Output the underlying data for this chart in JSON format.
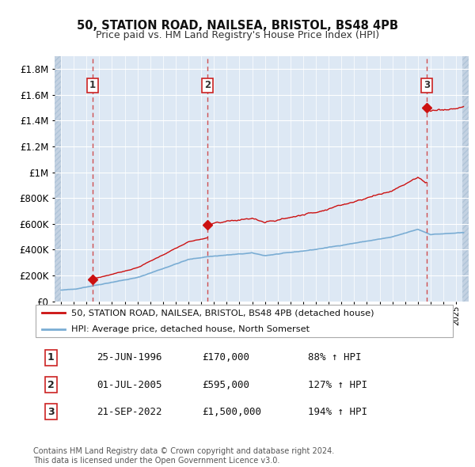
{
  "title_line1": "50, STATION ROAD, NAILSEA, BRISTOL, BS48 4PB",
  "title_line2": "Price paid vs. HM Land Registry's House Price Index (HPI)",
  "hpi_color": "#7aadd4",
  "price_color": "#cc1111",
  "dashed_color": "#cc3333",
  "background_plot": "#dde8f4",
  "hatch_color": "#c4d2e2",
  "legend_label_price": "50, STATION ROAD, NAILSEA, BRISTOL, BS48 4PB (detached house)",
  "legend_label_hpi": "HPI: Average price, detached house, North Somerset",
  "transactions": [
    {
      "num": 1,
      "date_x": 1996.48,
      "price": 170000,
      "date_str": "25-JUN-1996",
      "price_str": "£170,000",
      "hpi_str": "88% ↑ HPI"
    },
    {
      "num": 2,
      "date_x": 2005.5,
      "price": 595000,
      "date_str": "01-JUL-2005",
      "price_str": "£595,000",
      "hpi_str": "127% ↑ HPI"
    },
    {
      "num": 3,
      "date_x": 2022.72,
      "price": 1500000,
      "date_str": "21-SEP-2022",
      "price_str": "£1,500,000",
      "hpi_str": "194% ↑ HPI"
    }
  ],
  "footer": "Contains HM Land Registry data © Crown copyright and database right 2024.\nThis data is licensed under the Open Government Licence v3.0.",
  "ylim": [
    0,
    1900000
  ],
  "xlim": [
    1993.5,
    2026.0
  ],
  "data_start": 1994.0,
  "data_end": 2025.5
}
